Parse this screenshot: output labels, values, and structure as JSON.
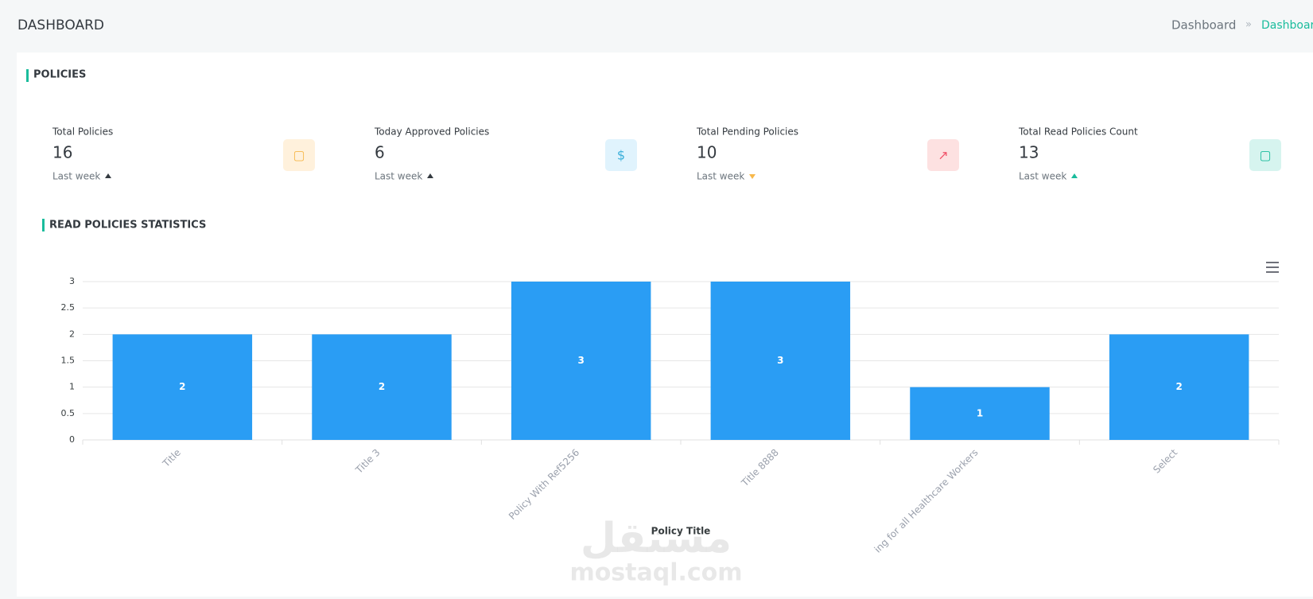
{
  "header": {
    "title": "DASHBOARD",
    "breadcrumb": [
      "Dashboard",
      "Dashboard"
    ]
  },
  "section_title": "POLICIES",
  "cards": [
    {
      "label": "Total Policies",
      "value": 16,
      "period": "Last week",
      "trend": "up"
    },
    {
      "label": "Today Approved Policies",
      "value": 6,
      "period": "Last week",
      "trend": "up"
    },
    {
      "label": "Total Pending Policies",
      "value": 10,
      "period": "Last week",
      "trend": "down"
    },
    {
      "label": "Total Read Policies Count",
      "value": 13,
      "period": "Last week",
      "trend": "up"
    }
  ],
  "watermark": [
    "مستقل",
    "mostaql.com"
  ],
  "chart_data": {
    "type": "bar",
    "title": "READ POLICIES STATISTICS",
    "x_label": "Policy Title",
    "categories": [
      "Title",
      "Title 3",
      "Policy With Ref5256",
      "Title 8888",
      "ing for all Healthcare Workers",
      "Select"
    ],
    "values": [
      2,
      2,
      3,
      3,
      1,
      2
    ],
    "color": "#2a9df4",
    "ylim": [
      0,
      3
    ],
    "yticks": [
      0,
      0.5,
      1,
      1.5,
      2,
      2.5,
      3
    ],
    "grid": true
  }
}
